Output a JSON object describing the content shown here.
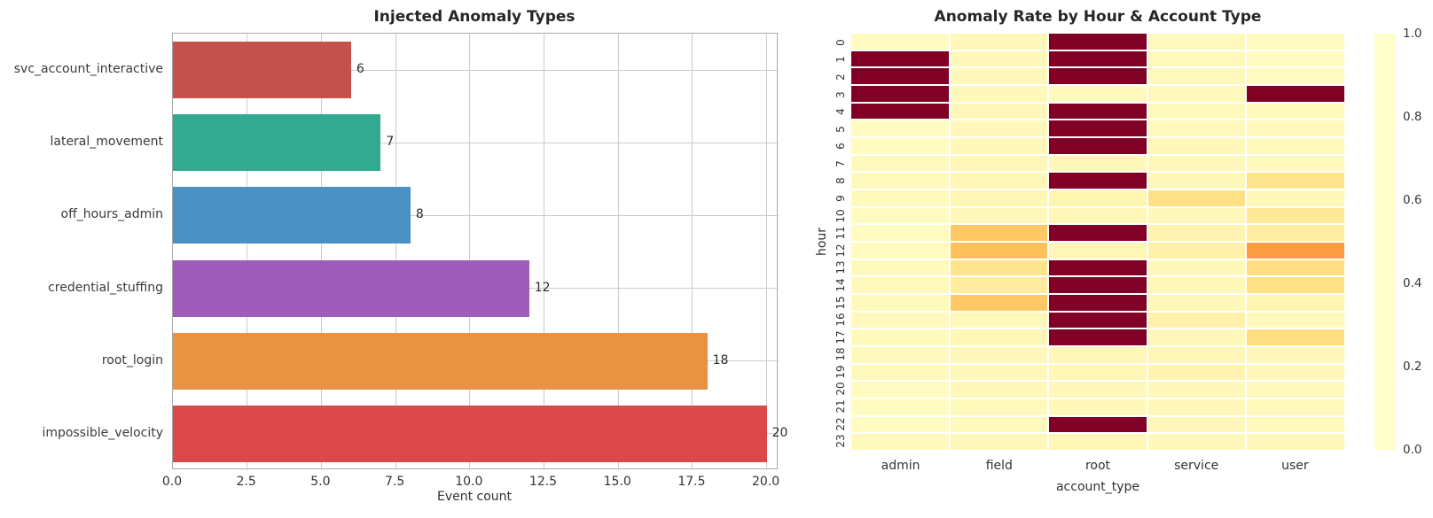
{
  "chart_data": [
    {
      "type": "bar",
      "orientation": "horizontal",
      "title": "Injected Anomaly Types",
      "xlabel": "Event count",
      "ylabel": "",
      "categories": [
        "svc_account_interactive",
        "lateral_movement",
        "off_hours_admin",
        "credential_stuffing",
        "root_login",
        "impossible_velocity"
      ],
      "values": [
        6,
        7,
        8,
        12,
        18,
        20
      ],
      "value_labels": [
        "6",
        "7",
        "8",
        "12",
        "18",
        "20"
      ],
      "bar_colors": [
        "#c5514c",
        "#32aa90",
        "#4b90c4",
        "#9d5db8",
        "#e99241",
        "#da4849"
      ],
      "xticks": [
        0,
        2.5,
        5,
        7.5,
        10,
        12.5,
        15,
        17.5,
        20
      ],
      "xtick_labels": [
        "0.0",
        "2.5",
        "5.0",
        "7.5",
        "10.0",
        "12.5",
        "15.0",
        "17.5",
        "20.0"
      ],
      "xlim": [
        0,
        20.4
      ],
      "grid": true,
      "grid_color": "#cccccc"
    },
    {
      "type": "heatmap",
      "title": "Anomaly Rate by Hour & Account Type",
      "xlabel": "account_type",
      "ylabel": "hour",
      "columns": [
        "admin",
        "field",
        "root",
        "service",
        "user"
      ],
      "rows": [
        "0",
        "1",
        "2",
        "3",
        "4",
        "5",
        "6",
        "7",
        "8",
        "9",
        "10",
        "11",
        "12",
        "13",
        "14",
        "15",
        "16",
        "17",
        "18",
        "19",
        "20",
        "21",
        "22",
        "23"
      ],
      "values": [
        [
          0.03,
          0.05,
          1.0,
          0.04,
          0.03
        ],
        [
          1.0,
          0.05,
          1.0,
          0.04,
          0.03
        ],
        [
          1.0,
          0.05,
          1.0,
          0.04,
          0.03
        ],
        [
          1.0,
          0.05,
          0.04,
          0.04,
          1.0
        ],
        [
          1.0,
          0.05,
          1.0,
          0.04,
          0.04
        ],
        [
          0.03,
          0.05,
          1.0,
          0.04,
          0.04
        ],
        [
          0.03,
          0.05,
          1.0,
          0.05,
          0.04
        ],
        [
          0.04,
          0.06,
          0.05,
          0.05,
          0.04
        ],
        [
          0.04,
          0.06,
          1.0,
          0.05,
          0.18
        ],
        [
          0.04,
          0.06,
          0.07,
          0.2,
          0.05
        ],
        [
          0.03,
          0.05,
          0.06,
          0.05,
          0.15
        ],
        [
          0.03,
          0.3,
          1.0,
          0.08,
          0.12
        ],
        [
          0.03,
          0.33,
          0.06,
          0.1,
          0.45
        ],
        [
          0.04,
          0.18,
          1.0,
          0.05,
          0.22
        ],
        [
          0.04,
          0.13,
          1.0,
          0.05,
          0.2
        ],
        [
          0.04,
          0.3,
          1.0,
          0.05,
          0.07
        ],
        [
          0.04,
          0.05,
          1.0,
          0.1,
          0.05
        ],
        [
          0.04,
          0.06,
          1.0,
          0.05,
          0.22
        ],
        [
          0.04,
          0.05,
          0.06,
          0.06,
          0.05
        ],
        [
          0.04,
          0.05,
          0.06,
          0.08,
          0.05
        ],
        [
          0.03,
          0.05,
          0.05,
          0.05,
          0.04
        ],
        [
          0.03,
          0.04,
          0.05,
          0.05,
          0.04
        ],
        [
          0.03,
          0.04,
          1.0,
          0.05,
          0.04
        ],
        [
          0.04,
          0.05,
          0.06,
          0.05,
          0.05
        ]
      ],
      "vmin": 0.0,
      "vmax": 1.0,
      "colormap": "YlOrRd",
      "colorbar_ticks": [
        1.0,
        0.8,
        0.6,
        0.4,
        0.2,
        0.0
      ],
      "colorbar_tick_labels": [
        "1.0",
        "0.8",
        "0.6",
        "0.4",
        "0.2",
        "0.0"
      ]
    }
  ]
}
